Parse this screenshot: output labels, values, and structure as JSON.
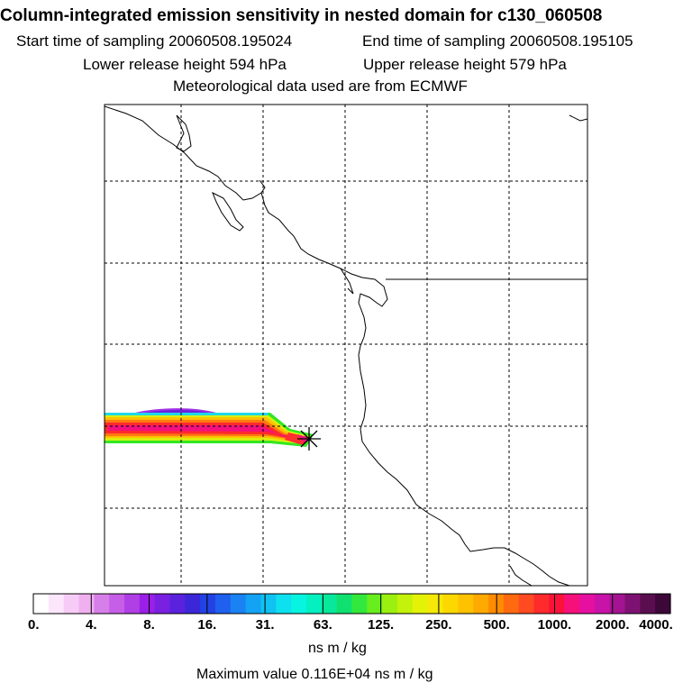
{
  "header": {
    "title": "Column-integrated emission sensitivity in nested domain for c130_060508",
    "start_time": "Start time of sampling 20060508.195024",
    "end_time": "End time of sampling 20060508.195105",
    "lower_release": "Lower release height  594 hPa",
    "upper_release": "Upper release height  579 hPa",
    "met_data": "Meteorological data used are from ECMWF"
  },
  "colorbar": {
    "labels": [
      "0.",
      "4.",
      "8.",
      "16.",
      "31.",
      "63.",
      "125.",
      "250.",
      "500.",
      "1000.",
      "2000.",
      "4000."
    ],
    "colors": [
      "#ffffff",
      "#fbe6fb",
      "#f6ccf6",
      "#f0b0f0",
      "#d77fe8",
      "#c65ee8",
      "#b13fe6",
      "#9a1fe8",
      "#7a20e0",
      "#5a22dc",
      "#3b27d8",
      "#2342e4",
      "#1f60ee",
      "#1a82f2",
      "#13a2f4",
      "#10c2f2",
      "#0de0ee",
      "#06f4e0",
      "#05f0c0",
      "#08e89a",
      "#10e070",
      "#33e83c",
      "#68ee1e",
      "#9cf010",
      "#c4f20a",
      "#e4f208",
      "#f6e808",
      "#fdd800",
      "#ffc200",
      "#ffaa00",
      "#ff8c00",
      "#ff6a10",
      "#ff4a22",
      "#ff2a2c",
      "#fa123a",
      "#f5107a",
      "#e610a0",
      "#c813a8",
      "#a41492",
      "#7e1272",
      "#5a0e50",
      "#3c0838"
    ],
    "units": "ns m / kg",
    "max_value": "Maximum value  0.116E+04 ns m / kg"
  },
  "map": {
    "receptor_marker": "star-icon",
    "colors": {
      "coast": "#000000",
      "grid": "#000000",
      "plume_peak": "#ff2020"
    }
  }
}
